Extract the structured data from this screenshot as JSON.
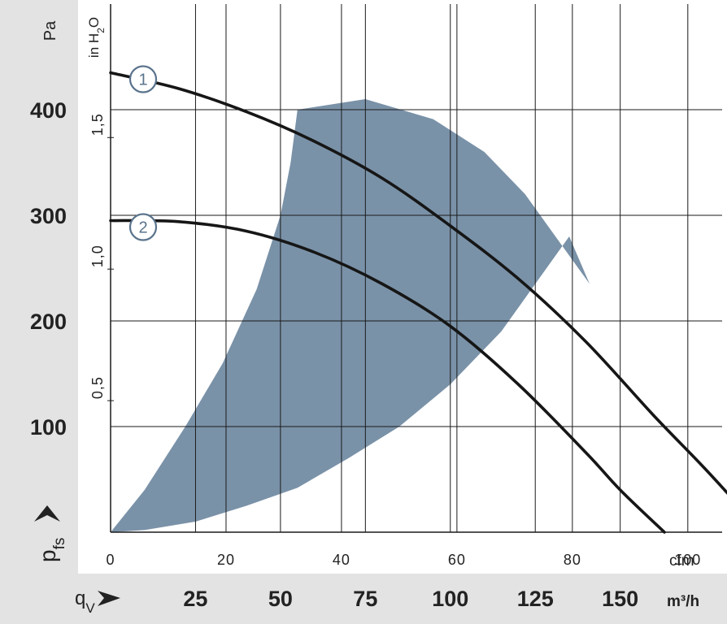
{
  "colors": {
    "panel": "#e3e3e3",
    "grid": "#1a1a1a",
    "curve": "#161616",
    "region": "#7a92a8",
    "badge": "#5a738c"
  },
  "labels": {
    "pa_unit": "Pa",
    "inh2o_unit_main": "in H",
    "inh2o_unit_sub": "2",
    "inh2o_unit_end": "O",
    "cfm_unit": "cfm",
    "m3h_unit": "m³/h",
    "ylabel_main": "p",
    "ylabel_sub": "fs",
    "xlabel_main": "q",
    "xlabel_sub": "V"
  },
  "chart_data": {
    "type": "line",
    "xlabel": "qV",
    "ylabel": "pfs",
    "x_unit": "m³/h",
    "y_unit": "Pa",
    "xlim": [
      0,
      180
    ],
    "ylim": [
      0,
      500
    ],
    "grid": true,
    "y_ticks_pa": [
      {
        "value": 100,
        "label": "100"
      },
      {
        "value": 200,
        "label": "200"
      },
      {
        "value": 300,
        "label": "300"
      },
      {
        "value": 400,
        "label": "400"
      }
    ],
    "y_ticks_inh2o": [
      {
        "value": 0.5,
        "label": "0,5"
      },
      {
        "value": 1.0,
        "label": "1,0"
      },
      {
        "value": 1.5,
        "label": "1,5"
      }
    ],
    "x_ticks_cfm": [
      {
        "value": 0,
        "label": "0"
      },
      {
        "value": 20,
        "label": "20"
      },
      {
        "value": 40,
        "label": "40"
      },
      {
        "value": 60,
        "label": "60"
      },
      {
        "value": 80,
        "label": "80"
      },
      {
        "value": 100,
        "label": "100"
      }
    ],
    "x_ticks_m3h": [
      {
        "value": 25,
        "label": "25"
      },
      {
        "value": 50,
        "label": "50"
      },
      {
        "value": 75,
        "label": "75"
      },
      {
        "value": 100,
        "label": "100"
      },
      {
        "value": 125,
        "label": "125"
      },
      {
        "value": 150,
        "label": "150"
      }
    ],
    "series": [
      {
        "name": "1",
        "x": [
          0,
          20,
          40,
          60,
          80,
          100,
          120,
          140,
          160,
          175,
          192
        ],
        "y": [
          435,
          420,
          398,
          370,
          335,
          290,
          240,
          180,
          110,
          60,
          0
        ]
      },
      {
        "name": "2",
        "x": [
          0,
          20,
          40,
          60,
          80,
          100,
          120,
          140,
          150,
          163
        ],
        "y": [
          295,
          294,
          285,
          265,
          235,
          195,
          140,
          75,
          40,
          0
        ]
      }
    ],
    "operating_region": {
      "x": [
        0,
        10,
        25,
        40,
        55,
        70,
        85,
        100,
        115,
        125,
        135,
        141,
        122,
        110,
        95,
        75,
        55,
        53,
        50,
        43,
        33,
        22,
        10,
        0
      ],
      "y": [
        0,
        2,
        10,
        25,
        42,
        70,
        100,
        140,
        190,
        235,
        280,
        235,
        320,
        360,
        391,
        410,
        400,
        350,
        300,
        230,
        160,
        100,
        40,
        0
      ]
    }
  }
}
